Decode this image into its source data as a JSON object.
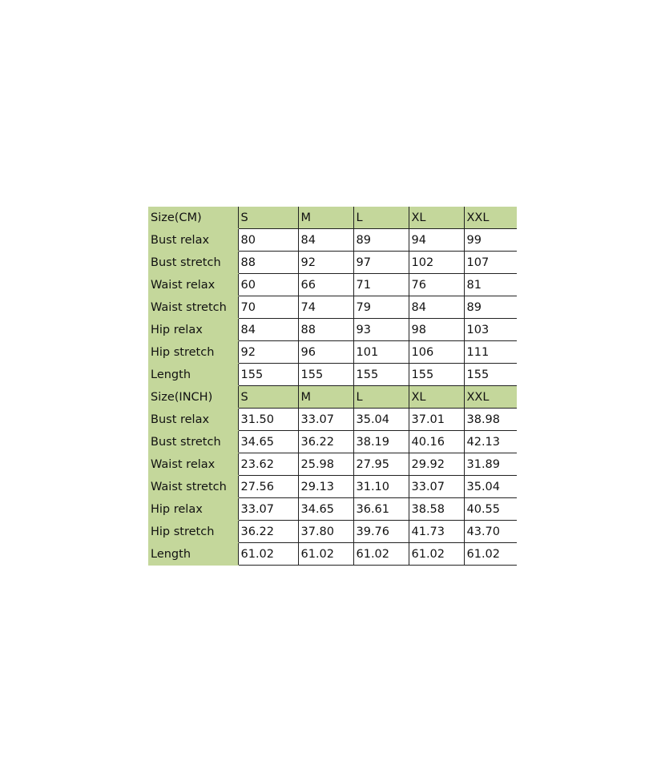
{
  "tables": [
    {
      "header": [
        "Size(CM)",
        "S",
        "M",
        "L",
        "XL",
        "XXL"
      ],
      "rows": [
        [
          "Bust relax",
          "80",
          "84",
          "89",
          "94",
          "99"
        ],
        [
          "Bust stretch",
          "88",
          "92",
          "97",
          "102",
          "107"
        ],
        [
          "Waist relax",
          "60",
          "66",
          "71",
          "76",
          "81"
        ],
        [
          "Waist stretch",
          "70",
          "74",
          "79",
          "84",
          "89"
        ],
        [
          "Hip relax",
          "84",
          "88",
          "93",
          "98",
          "103"
        ],
        [
          "Hip stretch",
          "92",
          "96",
          "101",
          "106",
          "111"
        ],
        [
          "Length",
          "155",
          "155",
          "155",
          "155",
          "155"
        ]
      ]
    },
    {
      "header": [
        "Size(INCH)",
        "S",
        "M",
        "L",
        "XL",
        "XXL"
      ],
      "rows": [
        [
          "Bust relax",
          "31.50",
          "33.07",
          "35.04",
          "37.01",
          "38.98"
        ],
        [
          "Bust stretch",
          "34.65",
          "36.22",
          "38.19",
          "40.16",
          "42.13"
        ],
        [
          "Waist relax",
          "23.62",
          "25.98",
          "27.95",
          "29.92",
          "31.89"
        ],
        [
          "Waist stretch",
          "27.56",
          "29.13",
          "31.10",
          "33.07",
          "35.04"
        ],
        [
          "Hip relax",
          "33.07",
          "34.65",
          "36.61",
          "38.58",
          "40.55"
        ],
        [
          "Hip stretch",
          "36.22",
          "37.80",
          "39.76",
          "41.73",
          "43.70"
        ],
        [
          "Length",
          "61.02",
          "61.02",
          "61.02",
          "61.02",
          "61.02"
        ]
      ]
    }
  ]
}
